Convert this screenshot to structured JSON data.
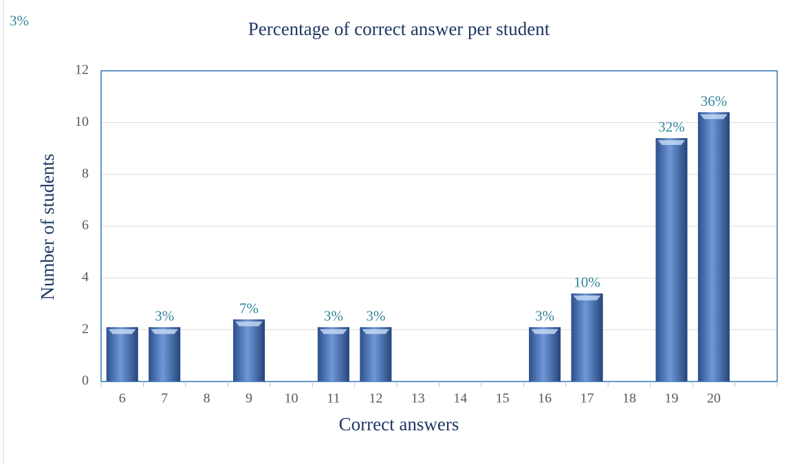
{
  "chart_data": {
    "type": "bar",
    "title": "Percentage of correct answer per student",
    "x_label": "Correct answers",
    "y_label": "Number of students",
    "categories": [
      "6",
      "7",
      "8",
      "9",
      "10",
      "11",
      "12",
      "13",
      "14",
      "15",
      "16",
      "17",
      "18",
      "19",
      "20",
      null
    ],
    "values": [
      2.1,
      2.1,
      0,
      2.4,
      0,
      2.1,
      2.1,
      0,
      0,
      0,
      2.1,
      3.4,
      0,
      9.4,
      10.4,
      null
    ],
    "value_labels": [
      "3%",
      "3%",
      null,
      "7%",
      null,
      "3%",
      "3%",
      null,
      null,
      null,
      "3%",
      "10%",
      null,
      "32%",
      "36%",
      null
    ],
    "color": "#4a78c0",
    "ylim": [
      0,
      12
    ],
    "yticks": [
      0,
      2,
      4,
      6,
      8,
      10,
      12
    ],
    "grid": true
  }
}
